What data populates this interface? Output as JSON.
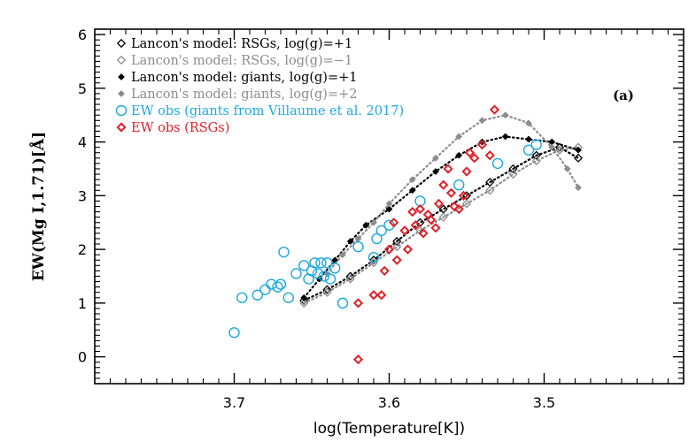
{
  "chart_data": {
    "type": "scatter",
    "xlabel": "log(Temperature[K])",
    "ylabel": "EW(Mg I,1.71)[Å]",
    "xlim": [
      3.79,
      3.41
    ],
    "ylim": [
      -0.5,
      6.1
    ],
    "x_reversed": true,
    "x_ticks": [
      3.7,
      3.6,
      3.5
    ],
    "x_tick_labels": [
      "3.7",
      "3.6",
      "3.5"
    ],
    "y_ticks": [
      0,
      1,
      2,
      3,
      4,
      5,
      6
    ],
    "y_tick_labels": [
      "0",
      "1",
      "2",
      "3",
      "4",
      "5",
      "6"
    ],
    "panel_label": "(a)",
    "legend_position": "top-left",
    "colors": {
      "black": "#000000",
      "gray": "#8c8c8c",
      "cyan": "#1ea8e0",
      "red": "#e0202a"
    },
    "legend": [
      {
        "label": "Lancon's model: RSGs, log(g)=+1",
        "marker": "diamond-open",
        "color": "#000000"
      },
      {
        "label": "Lancon's model: RSGs, log(g)=−1",
        "marker": "diamond-open",
        "color": "#8c8c8c"
      },
      {
        "label": "Lancon's model: giants, log(g)=+1",
        "marker": "diamond-filled",
        "color": "#000000"
      },
      {
        "label": "Lancon's model: giants, log(g)=+2",
        "marker": "diamond-filled",
        "color": "#8c8c8c"
      },
      {
        "label": "EW obs (giants from Villaume et al. 2017)",
        "marker": "circle-open",
        "color": "#1ea8e0"
      },
      {
        "label": "EW obs (RSGs)",
        "marker": "diamond-open",
        "color": "#e0202a"
      }
    ],
    "series": [
      {
        "name": "Lancon's model: RSGs, log(g)=+1",
        "color": "#000000",
        "marker": "diamond-open",
        "line": "dotted",
        "x": [
          3.655,
          3.64,
          3.625,
          3.61,
          3.595,
          3.58,
          3.565,
          3.55,
          3.535,
          3.52,
          3.505,
          3.49,
          3.478
        ],
        "y": [
          1.05,
          1.25,
          1.5,
          1.8,
          2.15,
          2.5,
          2.75,
          3.0,
          3.25,
          3.5,
          3.75,
          3.9,
          3.7
        ]
      },
      {
        "name": "Lancon's model: RSGs, log(g)=−1",
        "color": "#8c8c8c",
        "marker": "diamond-open",
        "line": "dotted",
        "x": [
          3.655,
          3.64,
          3.625,
          3.61,
          3.595,
          3.58,
          3.565,
          3.55,
          3.535,
          3.52,
          3.505,
          3.49,
          3.478
        ],
        "y": [
          1.0,
          1.2,
          1.45,
          1.75,
          2.05,
          2.35,
          2.6,
          2.85,
          3.1,
          3.4,
          3.65,
          3.85,
          3.9
        ]
      },
      {
        "name": "Lancon's model: giants, log(g)=+1",
        "color": "#000000",
        "marker": "diamond-filled",
        "line": "dotted",
        "x": [
          3.655,
          3.645,
          3.635,
          3.625,
          3.615,
          3.6,
          3.585,
          3.57,
          3.555,
          3.54,
          3.525,
          3.51,
          3.495,
          3.478
        ],
        "y": [
          1.1,
          1.45,
          1.8,
          2.15,
          2.45,
          2.75,
          3.1,
          3.45,
          3.75,
          4.0,
          4.1,
          4.05,
          4.0,
          3.85
        ]
      },
      {
        "name": "Lancon's model: giants, log(g)=+2",
        "color": "#8c8c8c",
        "marker": "diamond-filled",
        "line": "dotted",
        "x": [
          3.64,
          3.63,
          3.62,
          3.61,
          3.6,
          3.585,
          3.57,
          3.555,
          3.54,
          3.525,
          3.51,
          3.495,
          3.485,
          3.478
        ],
        "y": [
          1.55,
          1.9,
          2.2,
          2.5,
          2.85,
          3.3,
          3.7,
          4.1,
          4.4,
          4.5,
          4.35,
          3.9,
          3.5,
          3.15
        ]
      },
      {
        "name": "EW obs (giants from Villaume et al. 2017)",
        "color": "#1ea8e0",
        "marker": "circle-open",
        "x": [
          3.7,
          3.695,
          3.685,
          3.68,
          3.676,
          3.672,
          3.67,
          3.668,
          3.665,
          3.66,
          3.655,
          3.652,
          3.65,
          3.648,
          3.646,
          3.644,
          3.642,
          3.64,
          3.638,
          3.635,
          3.63,
          3.62,
          3.61,
          3.608,
          3.605,
          3.6,
          3.58,
          3.555,
          3.53,
          3.51,
          3.505
        ],
        "y": [
          0.45,
          1.1,
          1.15,
          1.25,
          1.35,
          1.3,
          1.35,
          1.95,
          1.1,
          1.55,
          1.7,
          1.45,
          1.6,
          1.75,
          1.55,
          1.75,
          1.5,
          1.75,
          1.45,
          1.65,
          1.0,
          2.05,
          1.85,
          2.2,
          2.35,
          2.45,
          2.9,
          3.2,
          3.6,
          3.85,
          3.95
        ]
      },
      {
        "name": "EW obs (RSGs)",
        "color": "#e0202a",
        "marker": "diamond-open",
        "x": [
          3.62,
          3.62,
          3.61,
          3.605,
          3.603,
          3.6,
          3.597,
          3.595,
          3.59,
          3.588,
          3.585,
          3.583,
          3.58,
          3.578,
          3.575,
          3.573,
          3.57,
          3.568,
          3.565,
          3.562,
          3.56,
          3.558,
          3.555,
          3.552,
          3.55,
          3.548,
          3.545,
          3.54,
          3.535,
          3.532
        ],
        "y": [
          -0.05,
          1.0,
          1.15,
          1.15,
          1.6,
          2.0,
          2.5,
          1.8,
          2.35,
          2.0,
          2.7,
          2.45,
          2.75,
          2.3,
          2.65,
          2.55,
          2.4,
          2.85,
          3.2,
          3.5,
          3.05,
          2.8,
          2.75,
          3.0,
          3.45,
          3.8,
          3.7,
          3.95,
          3.75,
          4.6
        ]
      }
    ]
  }
}
